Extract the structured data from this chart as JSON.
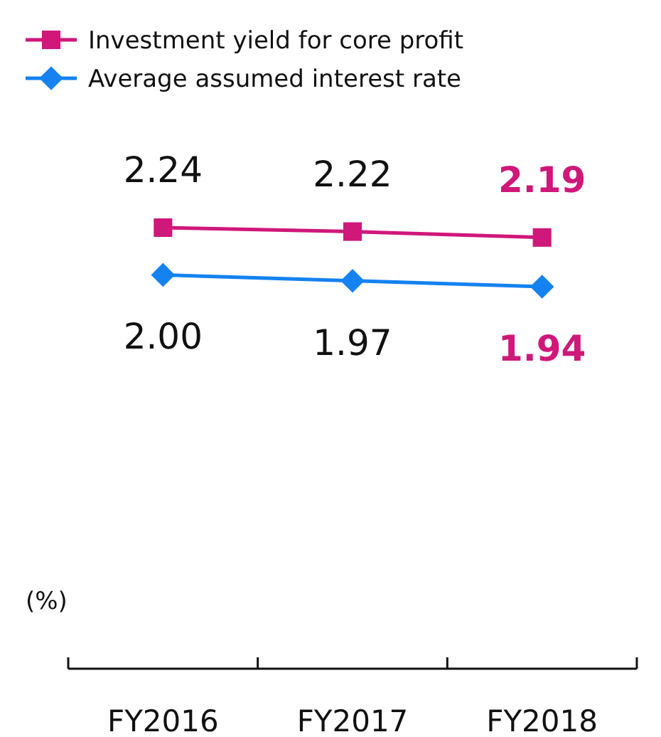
{
  "chart_data": {
    "type": "line",
    "ylabel": "(%)",
    "categories": [
      "FY2016",
      "FY2017",
      "FY2018"
    ],
    "legend": "top left",
    "tick_labels": "x",
    "series": [
      {
        "name": "Investment yield for core profit",
        "color": "#d0177a",
        "values": [
          2.24,
          2.22,
          2.19
        ],
        "value_labels": [
          "2.24",
          "2.22",
          "2.19"
        ],
        "marker": "square"
      },
      {
        "name": "Average assumed interest rate",
        "color": "#1482f0",
        "values": [
          2.0,
          1.97,
          1.94
        ],
        "value_labels": [
          "2.00",
          "1.97",
          "1.94"
        ],
        "marker": "diamond"
      }
    ]
  }
}
